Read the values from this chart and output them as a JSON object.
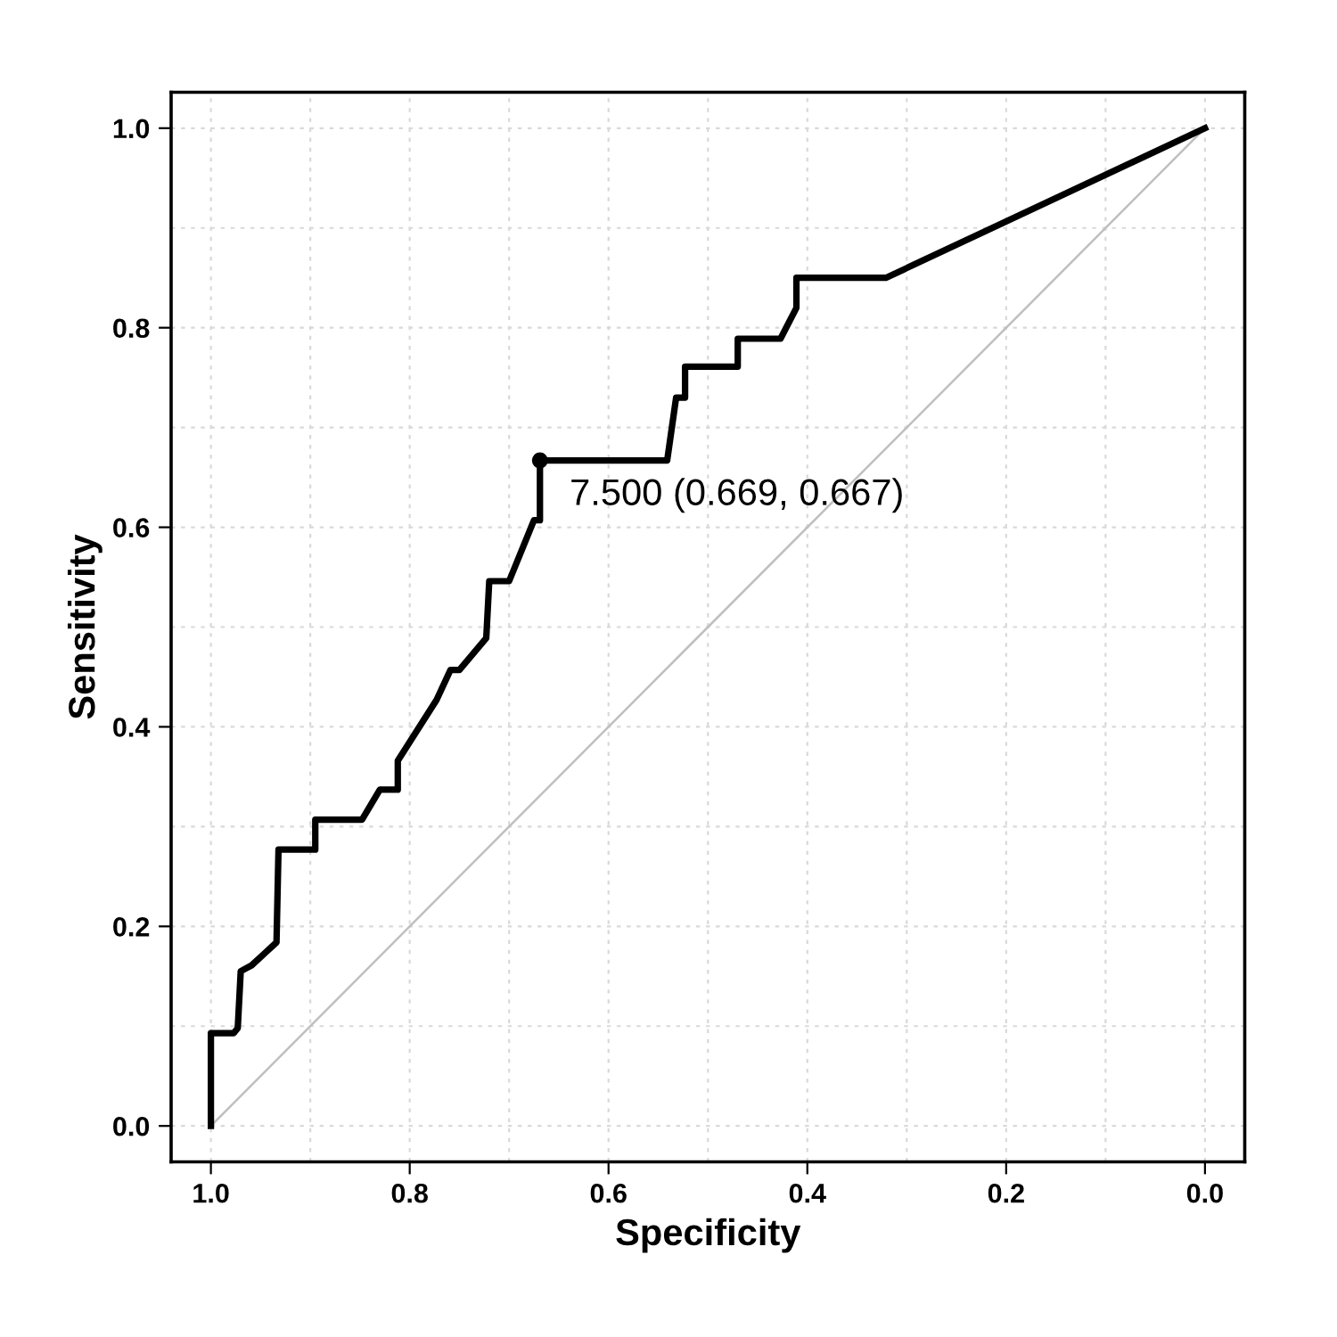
{
  "chart_data": {
    "type": "line",
    "xlabel": "Specificity",
    "ylabel": "Sensitivity",
    "xlim": [
      1.04,
      -0.04
    ],
    "ylim": [
      -0.036,
      1.036
    ],
    "xticks": [
      {
        "value": 1,
        "label": "1.0"
      },
      {
        "value": 0.9,
        "label": null
      },
      0.8,
      {
        "value": 0.7,
        "label": null
      },
      0.6,
      {
        "value": 0.5,
        "label": null
      },
      0.4,
      {
        "value": 0.3,
        "label": null
      },
      0.2,
      {
        "value": 0.1,
        "label": null
      },
      {
        "value": 0,
        "label": "0.0"
      }
    ],
    "yticks": [
      {
        "value": 0,
        "label": "0.0"
      },
      {
        "value": 0.1,
        "label": null
      },
      0.2,
      {
        "value": 0.3,
        "label": null
      },
      0.4,
      {
        "value": 0.5,
        "label": null
      },
      0.6,
      {
        "value": 0.7,
        "label": null
      },
      0.8,
      {
        "value": 0.9,
        "label": null
      },
      {
        "value": 1,
        "label": "1.0"
      }
    ],
    "grid": true,
    "line_style": "solid",
    "series": [
      {
        "type": "line",
        "color": "#bfbfbf",
        "x": [
          1.0,
          0.0
        ],
        "values": [
          0.0,
          1.0
        ]
      },
      {
        "color": "#000000",
        "x": [
          1.0,
          1.0,
          0.977,
          0.973,
          0.97,
          0.959,
          0.946,
          0.934,
          0.932,
          0.92,
          0.895,
          0.895,
          0.848,
          0.83,
          0.812,
          0.812,
          0.773,
          0.759,
          0.75,
          0.723,
          0.72,
          0.7,
          0.675,
          0.669,
          0.669,
          0.541,
          0.532,
          0.523,
          0.523,
          0.47,
          0.47,
          0.427,
          0.411,
          0.411,
          0.321,
          0.0
        ],
        "values": [
          0.0,
          0.093,
          0.093,
          0.098,
          0.155,
          0.161,
          0.173,
          0.184,
          0.277,
          0.277,
          0.277,
          0.307,
          0.307,
          0.337,
          0.337,
          0.366,
          0.427,
          0.457,
          0.457,
          0.489,
          0.546,
          0.546,
          0.607,
          0.607,
          0.667,
          0.667,
          0.73,
          0.73,
          0.761,
          0.761,
          0.789,
          0.789,
          0.82,
          0.85,
          0.85,
          1.0
        ]
      },
      {
        "type": "scatter",
        "color": "#000000",
        "x": [
          0.669
        ],
        "values": [
          0.667
        ],
        "marker": "circle"
      }
    ],
    "annotations": [
      {
        "text": "7.500 (0.669, 0.667)",
        "x": 0.669,
        "y": 0.667
      }
    ]
  }
}
